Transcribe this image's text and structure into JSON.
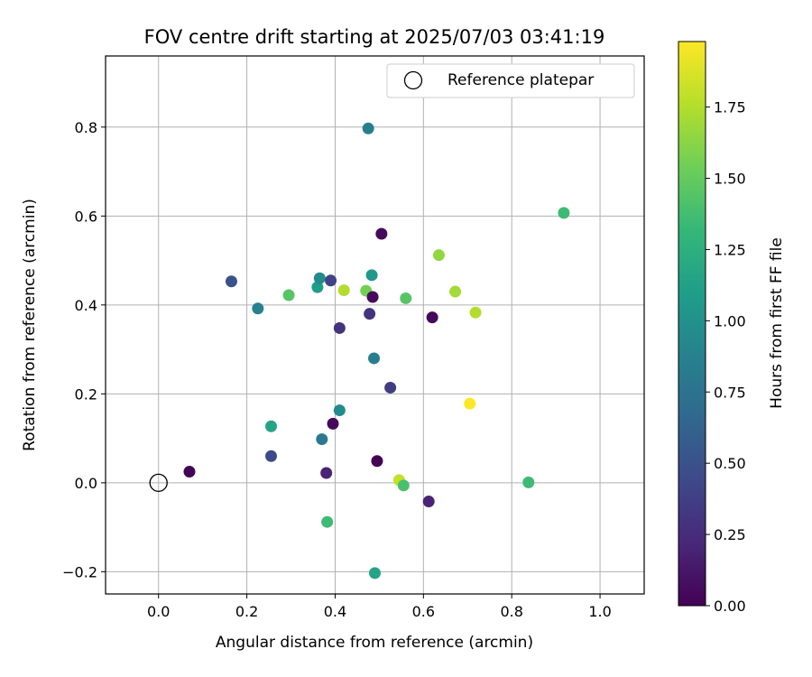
{
  "chart_data": {
    "type": "scatter",
    "title": "FOV centre drift starting at 2025/07/03 03:41:19",
    "xlabel": "Angular distance from reference (arcmin)",
    "ylabel": "Rotation from reference (arcmin)",
    "xlim": [
      -0.12,
      1.1
    ],
    "ylim": [
      -0.25,
      0.96
    ],
    "xticks": [
      0.0,
      0.2,
      0.4,
      0.6,
      0.8,
      1.0
    ],
    "xtick_labels": [
      "0.0",
      "0.2",
      "0.4",
      "0.6",
      "0.8",
      "1.0"
    ],
    "yticks": [
      -0.2,
      0.0,
      0.2,
      0.4,
      0.6,
      0.8
    ],
    "ytick_labels": [
      "−0.2",
      "0.0",
      "0.2",
      "0.4",
      "0.6",
      "0.8"
    ],
    "grid": true,
    "legend": {
      "position": "upper-right",
      "entries": [
        "Reference platepar"
      ]
    },
    "reference_point": {
      "x": 0.0,
      "y": 0.0
    },
    "colorbar": {
      "label": "Hours from first FF file",
      "range": [
        0.0,
        1.98
      ],
      "ticks": [
        0.0,
        0.25,
        0.5,
        0.75,
        1.0,
        1.25,
        1.5,
        1.75
      ],
      "tick_labels": [
        "0.00",
        "0.25",
        "0.50",
        "0.75",
        "1.00",
        "1.25",
        "1.50",
        "1.75"
      ],
      "colormap": "viridis"
    },
    "points": [
      {
        "x": 0.07,
        "y": 0.025,
        "c": 0.02
      },
      {
        "x": 0.165,
        "y": 0.453,
        "c": 0.5
      },
      {
        "x": 0.225,
        "y": 0.392,
        "c": 0.88
      },
      {
        "x": 0.255,
        "y": 0.127,
        "c": 1.15
      },
      {
        "x": 0.255,
        "y": 0.06,
        "c": 0.45
      },
      {
        "x": 0.295,
        "y": 0.422,
        "c": 1.45
      },
      {
        "x": 0.36,
        "y": 0.44,
        "c": 1.1
      },
      {
        "x": 0.365,
        "y": 0.46,
        "c": 0.95
      },
      {
        "x": 0.37,
        "y": 0.098,
        "c": 0.8
      },
      {
        "x": 0.38,
        "y": 0.022,
        "c": 0.2
      },
      {
        "x": 0.382,
        "y": -0.088,
        "c": 1.35
      },
      {
        "x": 0.39,
        "y": 0.455,
        "c": 0.4
      },
      {
        "x": 0.395,
        "y": 0.133,
        "c": 0.05
      },
      {
        "x": 0.41,
        "y": 0.163,
        "c": 0.95
      },
      {
        "x": 0.41,
        "y": 0.348,
        "c": 0.3
      },
      {
        "x": 0.42,
        "y": 0.433,
        "c": 1.75
      },
      {
        "x": 0.47,
        "y": 0.432,
        "c": 1.55
      },
      {
        "x": 0.475,
        "y": 0.797,
        "c": 0.85
      },
      {
        "x": 0.478,
        "y": 0.38,
        "c": 0.3
      },
      {
        "x": 0.483,
        "y": 0.467,
        "c": 1.05
      },
      {
        "x": 0.485,
        "y": 0.418,
        "c": 0.05
      },
      {
        "x": 0.488,
        "y": 0.28,
        "c": 0.85
      },
      {
        "x": 0.49,
        "y": -0.203,
        "c": 1.15
      },
      {
        "x": 0.495,
        "y": 0.049,
        "c": 0.0
      },
      {
        "x": 0.505,
        "y": 0.56,
        "c": 0.05
      },
      {
        "x": 0.525,
        "y": 0.214,
        "c": 0.35
      },
      {
        "x": 0.545,
        "y": 0.006,
        "c": 1.8
      },
      {
        "x": 0.555,
        "y": -0.006,
        "c": 1.4
      },
      {
        "x": 0.56,
        "y": 0.415,
        "c": 1.45
      },
      {
        "x": 0.612,
        "y": -0.042,
        "c": 0.2
      },
      {
        "x": 0.62,
        "y": 0.372,
        "c": 0.05
      },
      {
        "x": 0.635,
        "y": 0.512,
        "c": 1.65
      },
      {
        "x": 0.672,
        "y": 0.43,
        "c": 1.7
      },
      {
        "x": 0.705,
        "y": 0.178,
        "c": 1.98
      },
      {
        "x": 0.718,
        "y": 0.383,
        "c": 1.75
      },
      {
        "x": 0.838,
        "y": 0.001,
        "c": 1.35
      },
      {
        "x": 0.918,
        "y": 0.607,
        "c": 1.35
      }
    ]
  }
}
